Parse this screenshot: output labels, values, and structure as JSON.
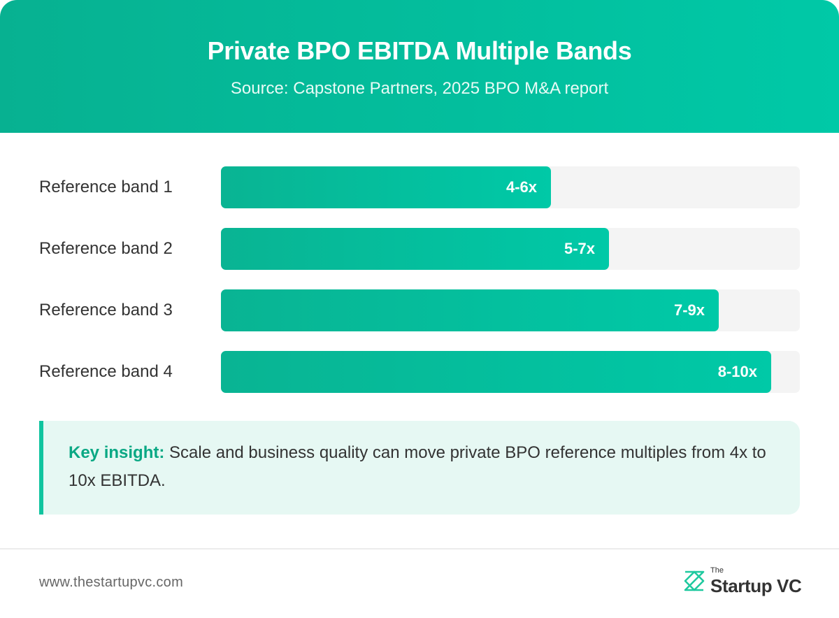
{
  "header": {
    "title": "Private BPO EBITDA Multiple Bands",
    "subtitle": "Source: Capstone Partners, 2025 BPO M&A report"
  },
  "chart_data": {
    "type": "bar",
    "orientation": "horizontal",
    "categories": [
      "Reference band 1",
      "Reference band 2",
      "Reference band 3",
      "Reference band 4"
    ],
    "data_labels": [
      "4-6x",
      "5-7x",
      "7-9x",
      "8-10x"
    ],
    "values": [
      5.7,
      6.7,
      8.6,
      9.5
    ],
    "xlim": [
      0,
      10
    ],
    "grid": false,
    "legend": "none",
    "colors": {
      "bar_start": "#09b493",
      "bar_end": "#00c9a7",
      "track": "#f4f4f4"
    }
  },
  "insight": {
    "label": "Key insight:",
    "text": " Scale and business quality can move private BPO reference multiples from 4x to 10x EBITDA."
  },
  "footer": {
    "url": "www.thestartupvc.com",
    "logo_small": "The",
    "logo_name": "Startup VC"
  },
  "colors": {
    "accent": "#00c9a7",
    "accent_dark": "#07b191",
    "insight_bg": "#e6f8f3"
  },
  "icons": {
    "logo": "startupvc-logo-icon"
  }
}
